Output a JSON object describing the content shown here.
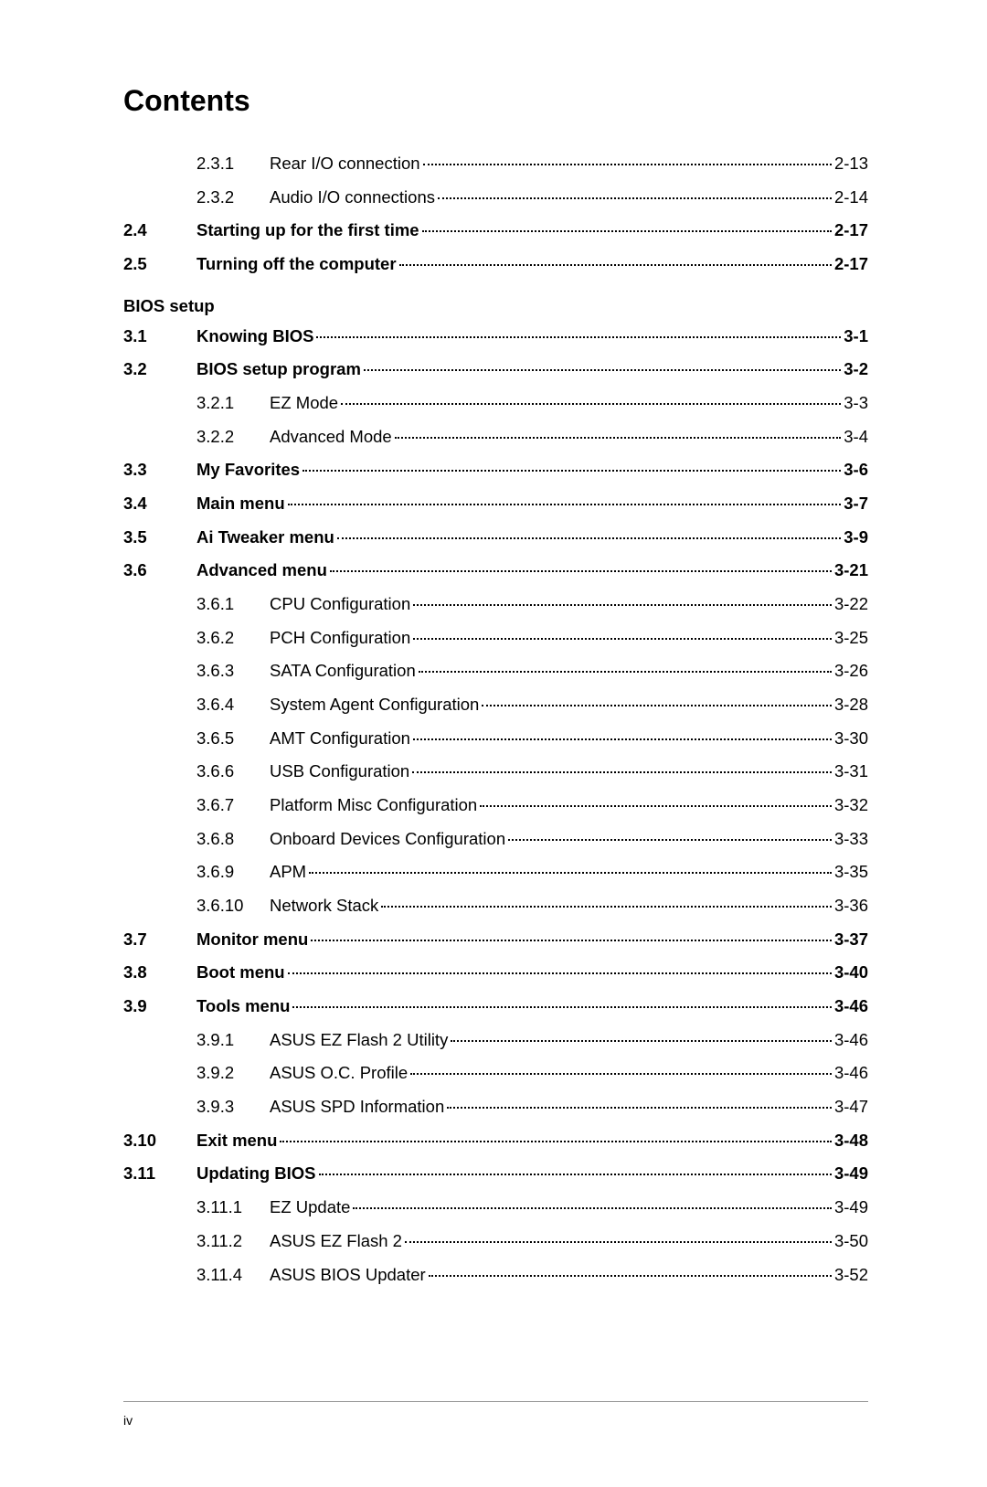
{
  "title": "Contents",
  "page_number": "iv",
  "entries": [
    {
      "type": "sub",
      "num": "2.3.1",
      "title": "Rear I/O connection",
      "page": "2-13"
    },
    {
      "type": "sub",
      "num": "2.3.2",
      "title": "Audio I/O connections",
      "page": "2-14"
    },
    {
      "type": "main",
      "num": "2.4",
      "title": "Starting up for the first time",
      "page": "2-17"
    },
    {
      "type": "main",
      "num": "2.5",
      "title": "Turning off the computer",
      "page": "2-17"
    },
    {
      "type": "section",
      "title": "BIOS setup"
    },
    {
      "type": "main",
      "num": "3.1",
      "title": "Knowing BIOS",
      "page": "3-1"
    },
    {
      "type": "main",
      "num": "3.2",
      "title": "BIOS setup program",
      "page": "3-2"
    },
    {
      "type": "sub",
      "num": "3.2.1",
      "title": "EZ Mode",
      "page": "3-3"
    },
    {
      "type": "sub",
      "num": "3.2.2",
      "title": "Advanced Mode",
      "page": "3-4"
    },
    {
      "type": "main",
      "num": "3.3",
      "title": "My Favorites",
      "page": "3-6"
    },
    {
      "type": "main",
      "num": "3.4",
      "title": "Main menu",
      "page": "3-7"
    },
    {
      "type": "main",
      "num": "3.5",
      "title": "Ai Tweaker menu",
      "page": "3-9"
    },
    {
      "type": "main",
      "num": "3.6",
      "title": "Advanced menu",
      "page": "3-21"
    },
    {
      "type": "sub",
      "num": "3.6.1",
      "title": "CPU Configuration",
      "page": "3-22"
    },
    {
      "type": "sub",
      "num": "3.6.2",
      "title": "PCH Configuration",
      "page": "3-25"
    },
    {
      "type": "sub",
      "num": "3.6.3",
      "title": "SATA Configuration",
      "page": "3-26"
    },
    {
      "type": "sub",
      "num": "3.6.4",
      "title": "System Agent Configuration",
      "page": "3-28"
    },
    {
      "type": "sub",
      "num": "3.6.5",
      "title": "AMT Configuration",
      "page": "3-30"
    },
    {
      "type": "sub",
      "num": "3.6.6",
      "title": "USB Configuration",
      "page": "3-31"
    },
    {
      "type": "sub",
      "num": "3.6.7",
      "title": "Platform Misc Configuration",
      "page": "3-32"
    },
    {
      "type": "sub",
      "num": "3.6.8",
      "title": "Onboard Devices Configuration",
      "page": "3-33"
    },
    {
      "type": "sub",
      "num": "3.6.9",
      "title": "APM",
      "page": "3-35"
    },
    {
      "type": "sub",
      "num": "3.6.10",
      "title": "Network Stack",
      "page": "3-36"
    },
    {
      "type": "main",
      "num": "3.7",
      "title": "Monitor menu",
      "page": "3-37"
    },
    {
      "type": "main",
      "num": "3.8",
      "title": "Boot menu",
      "page": "3-40"
    },
    {
      "type": "main",
      "num": "3.9",
      "title": "Tools menu",
      "page": "3-46"
    },
    {
      "type": "sub",
      "num": "3.9.1",
      "title": "ASUS EZ Flash 2 Utility",
      "page": "3-46"
    },
    {
      "type": "sub",
      "num": "3.9.2",
      "title": "ASUS O.C. Profile",
      "page": "3-46"
    },
    {
      "type": "sub",
      "num": "3.9.3",
      "title": "ASUS SPD Information",
      "page": "3-47"
    },
    {
      "type": "main",
      "num": "3.10",
      "title": "Exit menu",
      "page": "3-48"
    },
    {
      "type": "main",
      "num": "3.11",
      "title": "Updating BIOS",
      "page": "3-49"
    },
    {
      "type": "sub",
      "num": "3.11.1",
      "title": "EZ Update",
      "page": "3-49"
    },
    {
      "type": "sub",
      "num": "3.11.2",
      "title": "ASUS EZ Flash 2",
      "page": "3-50"
    },
    {
      "type": "sub",
      "num": "3.11.4",
      "title": "ASUS BIOS Updater",
      "page": "3-52"
    }
  ]
}
